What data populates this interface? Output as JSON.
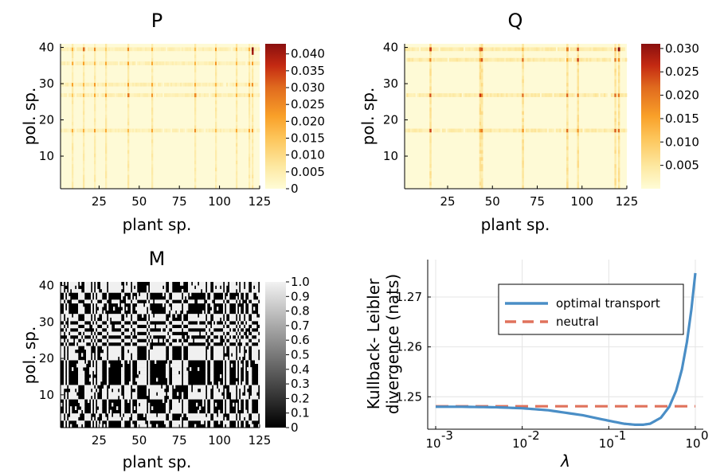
{
  "chart_data": [
    {
      "type": "heatmap",
      "title": "P",
      "xlabel": "plant sp.",
      "ylabel": "pol. sp.",
      "x_ticks": [
        "25",
        "50",
        "75",
        "100",
        "125"
      ],
      "y_ticks": [
        "10",
        "20",
        "30",
        "40"
      ],
      "x_range": [
        1,
        125
      ],
      "y_range": [
        1,
        41
      ],
      "colorbar_ticks": [
        "0",
        "0.005",
        "0.010",
        "0.015",
        "0.020",
        "0.025",
        "0.030",
        "0.035",
        "0.040"
      ],
      "colorbar_range": [
        0,
        0.043
      ],
      "colormap": "YlOrRd",
      "hot_columns": [
        8,
        15,
        22,
        29,
        43,
        58,
        85,
        98,
        111,
        119,
        121
      ],
      "hot_rows": [
        17,
        27,
        30,
        36,
        40
      ],
      "peak_cells": [
        [
          121,
          40,
          0.043
        ],
        [
          121,
          39,
          0.04
        ],
        [
          15,
          40,
          0.03
        ],
        [
          43,
          27,
          0.028
        ],
        [
          85,
          27,
          0.025
        ]
      ]
    },
    {
      "type": "heatmap",
      "title": "Q",
      "xlabel": "plant sp.",
      "ylabel": "pol. sp.",
      "x_ticks": [
        "25",
        "50",
        "75",
        "100",
        "125"
      ],
      "y_ticks": [
        "10",
        "20",
        "30",
        "40"
      ],
      "x_range": [
        1,
        125
      ],
      "y_range": [
        1,
        41
      ],
      "colorbar_ticks": [
        "0.005",
        "0.010",
        "0.015",
        "0.020",
        "0.025",
        "0.030"
      ],
      "colorbar_range": [
        0,
        0.031
      ],
      "colormap": "YlOrRd",
      "hot_columns": [
        15,
        43,
        44,
        67,
        92,
        98,
        119,
        121
      ],
      "hot_rows": [
        17,
        27,
        37,
        40
      ],
      "peak_cells": [
        [
          121,
          40,
          0.031
        ],
        [
          15,
          40,
          0.025
        ],
        [
          43,
          40,
          0.022
        ],
        [
          92,
          40,
          0.02
        ]
      ]
    },
    {
      "type": "heatmap",
      "title": "M",
      "xlabel": "plant sp.",
      "ylabel": "pol. sp.",
      "x_ticks": [
        "25",
        "50",
        "75",
        "100",
        "125"
      ],
      "y_ticks": [
        "10",
        "20",
        "30",
        "40"
      ],
      "x_range": [
        1,
        125
      ],
      "y_range": [
        1,
        41
      ],
      "colorbar_ticks": [
        "0",
        "0.1",
        "0.2",
        "0.3",
        "0.4",
        "0.5",
        "0.6",
        "0.7",
        "0.8",
        "0.9",
        "1.0"
      ],
      "colorbar_range": [
        0,
        1
      ],
      "colormap": "grays",
      "binary_matrix": true
    },
    {
      "type": "line",
      "title": "",
      "xlabel": "λ",
      "ylabel": "Kullback- Leibler divergence (nats)",
      "x_scale": "log",
      "x_range": [
        0.001,
        1
      ],
      "y_range": [
        1.2435,
        1.2775
      ],
      "x_ticks": [
        {
          "value": 0.001,
          "label": "10",
          "exp": "-3"
        },
        {
          "value": 0.01,
          "label": "10",
          "exp": "-2"
        },
        {
          "value": 0.1,
          "label": "10",
          "exp": "-1"
        },
        {
          "value": 1,
          "label": "10",
          "exp": "0"
        }
      ],
      "y_ticks": [
        "1.25",
        "1.26",
        "1.27"
      ],
      "y_tick_values": [
        1.25,
        1.26,
        1.27
      ],
      "grid": true,
      "legend_position": "top-right",
      "series": [
        {
          "name": "optimal transport",
          "color": "#4a8ec6",
          "style": "solid",
          "x": [
            0.001,
            0.002,
            0.005,
            0.01,
            0.02,
            0.05,
            0.1,
            0.15,
            0.2,
            0.25,
            0.3,
            0.4,
            0.5,
            0.6,
            0.7,
            0.8,
            0.9,
            1.0
          ],
          "y": [
            1.248,
            1.248,
            1.2479,
            1.2477,
            1.2473,
            1.2463,
            1.2452,
            1.2446,
            1.2444,
            1.2444,
            1.2446,
            1.2458,
            1.248,
            1.2512,
            1.2555,
            1.261,
            1.2675,
            1.2748
          ]
        },
        {
          "name": "neutral",
          "color": "#e0725c",
          "style": "dashed",
          "x": [
            0.001,
            1.0
          ],
          "y": [
            1.2481,
            1.2481
          ]
        }
      ]
    }
  ]
}
